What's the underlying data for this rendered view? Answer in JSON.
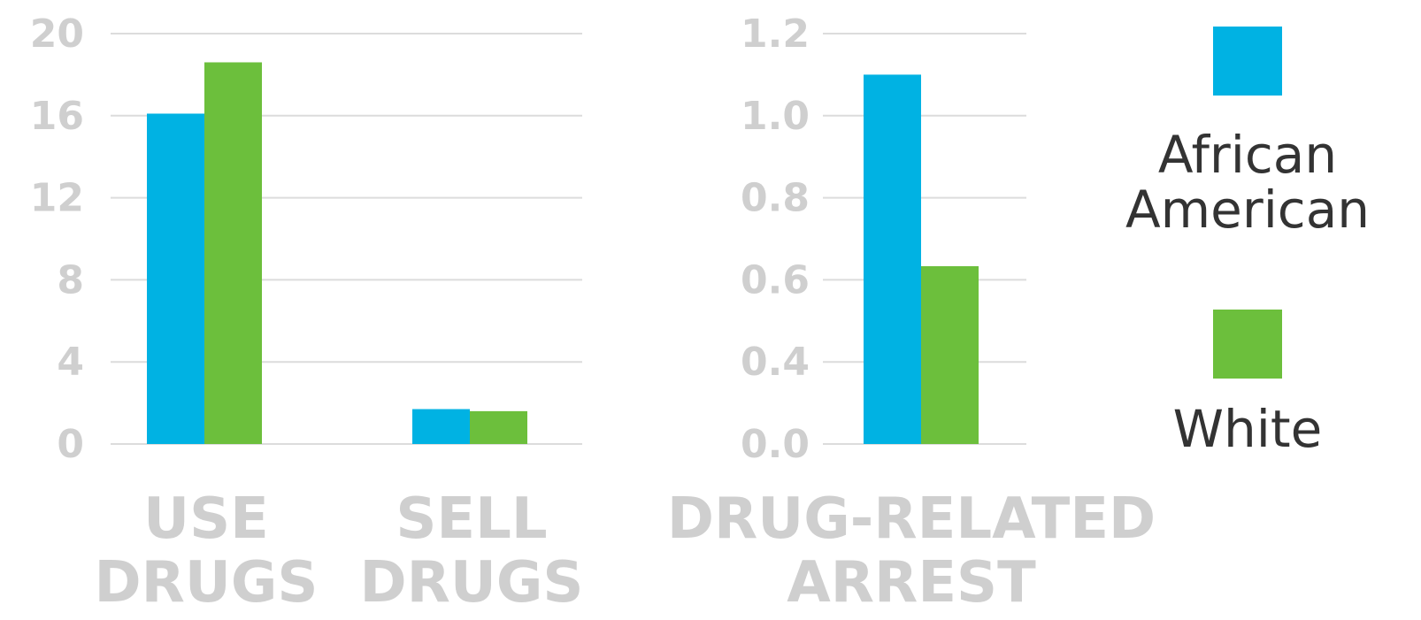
{
  "colors": {
    "african_american": "#00b2e3",
    "white": "#6cbf3c",
    "ticks": "#cfcfcf",
    "grid": "#dcdcdc",
    "legend_text": "#333333"
  },
  "legend": {
    "placement": "right",
    "items": [
      {
        "label_lines": [
          "African",
          "American"
        ],
        "color": "#00b2e3"
      },
      {
        "label_lines": [
          "White"
        ],
        "color": "#6cbf3c"
      }
    ]
  },
  "chart_data": [
    {
      "type": "bar",
      "grid": true,
      "ylim": [
        0,
        20
      ],
      "yticks": [
        "20",
        "16",
        "12",
        "8",
        "4",
        "0"
      ],
      "categories": [
        {
          "lines": [
            "USE",
            "DRUGS"
          ]
        },
        {
          "lines": [
            "SELL",
            "DRUGS"
          ]
        }
      ],
      "series": [
        {
          "name": "African American",
          "values": [
            16.1,
            1.7
          ]
        },
        {
          "name": "White",
          "values": [
            18.6,
            1.6
          ]
        }
      ]
    },
    {
      "type": "bar",
      "grid": true,
      "ylim": [
        0,
        1.2
      ],
      "yticks": [
        "1.2",
        "1.0",
        "0.8",
        "0.6",
        "0.4",
        "0.0"
      ],
      "categories": [
        {
          "lines": [
            "DRUG-RELATED",
            "ARREST"
          ]
        }
      ],
      "series": [
        {
          "name": "African American",
          "values": [
            1.08
          ]
        },
        {
          "name": "White",
          "values": [
            0.52
          ]
        }
      ]
    }
  ]
}
